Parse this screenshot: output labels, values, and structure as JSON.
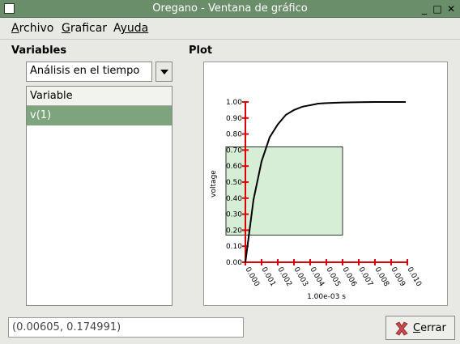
{
  "window": {
    "title": "Oregano - Ventana de gráfico"
  },
  "menu": [
    {
      "first": "A",
      "rest": "rchivo"
    },
    {
      "first": "G",
      "rest": "raficar"
    },
    {
      "first": "A",
      "rest": "yuda"
    }
  ],
  "variables": {
    "title": "Variables",
    "analysis_select": "Análisis en el tiempo",
    "column_header": "Variable",
    "items": [
      "v(1)"
    ]
  },
  "plot": {
    "title": "Plot"
  },
  "chart_data": {
    "type": "line",
    "title": "",
    "xlabel": "1.00e-03 s",
    "ylabel": "voltage",
    "xlim": [
      0,
      0.01
    ],
    "ylim": [
      0,
      1.0
    ],
    "x_ticks": [
      "0.000",
      "0.001",
      "0.002",
      "0.003",
      "0.004",
      "0.005",
      "0.006",
      "0.007",
      "0.008",
      "0.009",
      "0.010"
    ],
    "y_ticks": [
      "0.00",
      "0.10",
      "0.20",
      "0.30",
      "0.40",
      "0.50",
      "0.60",
      "0.70",
      "0.80",
      "0.90",
      "1.00"
    ],
    "series": [
      {
        "name": "v(1)",
        "x": [
          0,
          0.0005,
          0.001,
          0.0015,
          0.002,
          0.0025,
          0.003,
          0.0035,
          0.004,
          0.0045,
          0.005,
          0.006,
          0.007,
          0.008,
          0.009,
          0.0099
        ],
        "values": [
          0,
          0.39,
          0.63,
          0.78,
          0.86,
          0.92,
          0.95,
          0.97,
          0.98,
          0.99,
          0.993,
          0.997,
          0.999,
          1.0,
          1.0,
          1.0
        ]
      }
    ],
    "selection_region": {
      "x_start": -0.0012,
      "x_end": 0.006,
      "y_start": 0.17,
      "y_end": 0.72
    },
    "colors": {
      "axis": "#dd0000",
      "curve": "#000000",
      "selection_fill": "#d6eed6"
    }
  },
  "status": {
    "coordinates": "(0.00605, 0.174991)"
  },
  "buttons": {
    "close_first": "C",
    "close_rest": "errar"
  }
}
